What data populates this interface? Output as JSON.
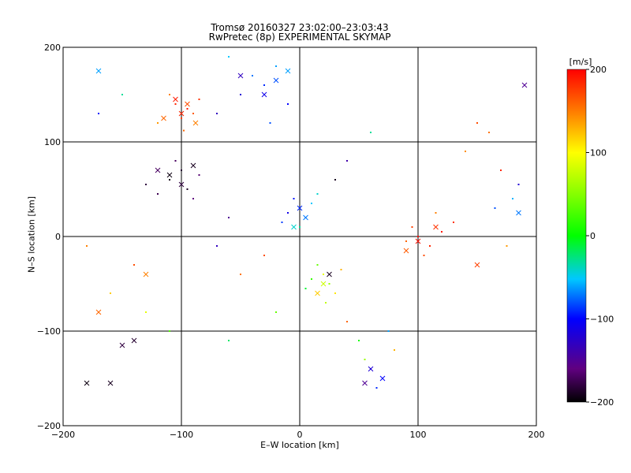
{
  "chart_data": {
    "type": "scatter",
    "title": "Tromsø 20160327 23:02:00–23:03:43",
    "subtitle": "RwPretec (8p) EXPERIMENTAL SKYMAP",
    "xlabel": "E–W location [km]",
    "ylabel": "N–S location [km]",
    "xlim": [
      -200,
      200
    ],
    "ylim": [
      -200,
      200
    ],
    "x_ticks": [
      -200,
      -100,
      0,
      100,
      200
    ],
    "y_ticks": [
      -200,
      -100,
      0,
      100,
      200
    ],
    "grid": true,
    "colorbar": {
      "label": "[m/s]",
      "range": [
        -200,
        200
      ],
      "ticks": [
        200,
        100,
        0,
        -100,
        -200
      ],
      "colormap": "rainbow"
    },
    "series": [
      {
        "marker": "dot",
        "points": [
          [
            -95,
            135,
            190
          ],
          [
            -105,
            140,
            185
          ],
          [
            -100,
            125,
            175
          ],
          [
            -90,
            130,
            165
          ],
          [
            -110,
            150,
            150
          ],
          [
            -85,
            145,
            180
          ],
          [
            -120,
            120,
            140
          ],
          [
            -98,
            112,
            160
          ],
          [
            -110,
            60,
            -195
          ],
          [
            -100,
            70,
            -185
          ],
          [
            -95,
            50,
            -190
          ],
          [
            -120,
            45,
            -175
          ],
          [
            -85,
            65,
            -165
          ],
          [
            -130,
            55,
            -180
          ],
          [
            -105,
            80,
            -170
          ],
          [
            -90,
            40,
            -160
          ],
          [
            -40,
            170,
            -70
          ],
          [
            -30,
            160,
            -90
          ],
          [
            -50,
            150,
            -120
          ],
          [
            -20,
            180,
            -60
          ],
          [
            -60,
            190,
            -50
          ],
          [
            -10,
            140,
            -100
          ],
          [
            -70,
            130,
            -130
          ],
          [
            -25,
            120,
            -80
          ],
          [
            0,
            30,
            -75
          ],
          [
            5,
            20,
            -60
          ],
          [
            -5,
            40,
            -95
          ],
          [
            10,
            35,
            -50
          ],
          [
            -10,
            25,
            -110
          ],
          [
            0,
            10,
            -30
          ],
          [
            15,
            45,
            -40
          ],
          [
            -15,
            15,
            -85
          ],
          [
            20,
            -40,
            90
          ],
          [
            25,
            -50,
            60
          ],
          [
            15,
            -30,
            40
          ],
          [
            30,
            -60,
            110
          ],
          [
            10,
            -45,
            20
          ],
          [
            35,
            -35,
            130
          ],
          [
            22,
            -70,
            75
          ],
          [
            5,
            -55,
            -10
          ],
          [
            100,
            0,
            195
          ],
          [
            110,
            -10,
            185
          ],
          [
            95,
            10,
            175
          ],
          [
            120,
            5,
            190
          ],
          [
            105,
            -20,
            170
          ],
          [
            90,
            -5,
            160
          ],
          [
            130,
            15,
            180
          ],
          [
            115,
            25,
            150
          ],
          [
            150,
            120,
            170
          ],
          [
            160,
            110,
            155
          ],
          [
            170,
            70,
            185
          ],
          [
            140,
            90,
            145
          ],
          [
            180,
            40,
            -55
          ],
          [
            165,
            30,
            -80
          ],
          [
            185,
            55,
            -120
          ],
          [
            175,
            -10,
            140
          ],
          [
            -150,
            150,
            -30
          ],
          [
            -170,
            130,
            -95
          ],
          [
            -140,
            -30,
            170
          ],
          [
            -160,
            -60,
            120
          ],
          [
            -130,
            -80,
            90
          ],
          [
            -180,
            -10,
            150
          ],
          [
            -110,
            -100,
            30
          ],
          [
            -60,
            -110,
            -20
          ],
          [
            60,
            -140,
            -110
          ],
          [
            70,
            -150,
            -140
          ],
          [
            55,
            -130,
            60
          ],
          [
            80,
            -120,
            130
          ],
          [
            65,
            -160,
            -90
          ],
          [
            50,
            -110,
            10
          ],
          [
            40,
            -90,
            160
          ],
          [
            75,
            -100,
            -60
          ],
          [
            -50,
            -40,
            155
          ],
          [
            -30,
            -20,
            170
          ],
          [
            -70,
            -10,
            -130
          ],
          [
            -20,
            -80,
            40
          ],
          [
            40,
            80,
            -140
          ],
          [
            30,
            60,
            -190
          ],
          [
            60,
            110,
            -30
          ],
          [
            -60,
            20,
            -150
          ]
        ]
      },
      {
        "marker": "cross",
        "points": [
          [
            -100,
            130,
            185
          ],
          [
            -95,
            140,
            170
          ],
          [
            -115,
            125,
            160
          ],
          [
            -105,
            145,
            190
          ],
          [
            -88,
            120,
            150
          ],
          [
            -110,
            65,
            -195
          ],
          [
            -100,
            55,
            -180
          ],
          [
            -120,
            70,
            -170
          ],
          [
            -90,
            75,
            -190
          ],
          [
            -30,
            150,
            -110
          ],
          [
            -20,
            165,
            -80
          ],
          [
            -50,
            170,
            -130
          ],
          [
            -10,
            175,
            -60
          ],
          [
            0,
            30,
            -90
          ],
          [
            5,
            20,
            -70
          ],
          [
            -5,
            10,
            -40
          ],
          [
            20,
            -50,
            80
          ],
          [
            25,
            -40,
            -190
          ],
          [
            15,
            -60,
            120
          ],
          [
            100,
            -5,
            195
          ],
          [
            115,
            10,
            180
          ],
          [
            90,
            -15,
            165
          ],
          [
            60,
            -140,
            -120
          ],
          [
            70,
            -150,
            -100
          ],
          [
            55,
            -155,
            -150
          ],
          [
            -180,
            -155,
            -195
          ],
          [
            -160,
            -155,
            -190
          ],
          [
            -150,
            -115,
            -180
          ],
          [
            -140,
            -110,
            -185
          ],
          [
            -170,
            -80,
            160
          ],
          [
            -130,
            -40,
            150
          ],
          [
            -170,
            175,
            -60
          ],
          [
            150,
            -30,
            175
          ],
          [
            185,
            25,
            -70
          ],
          [
            190,
            160,
            -150
          ]
        ]
      }
    ]
  }
}
